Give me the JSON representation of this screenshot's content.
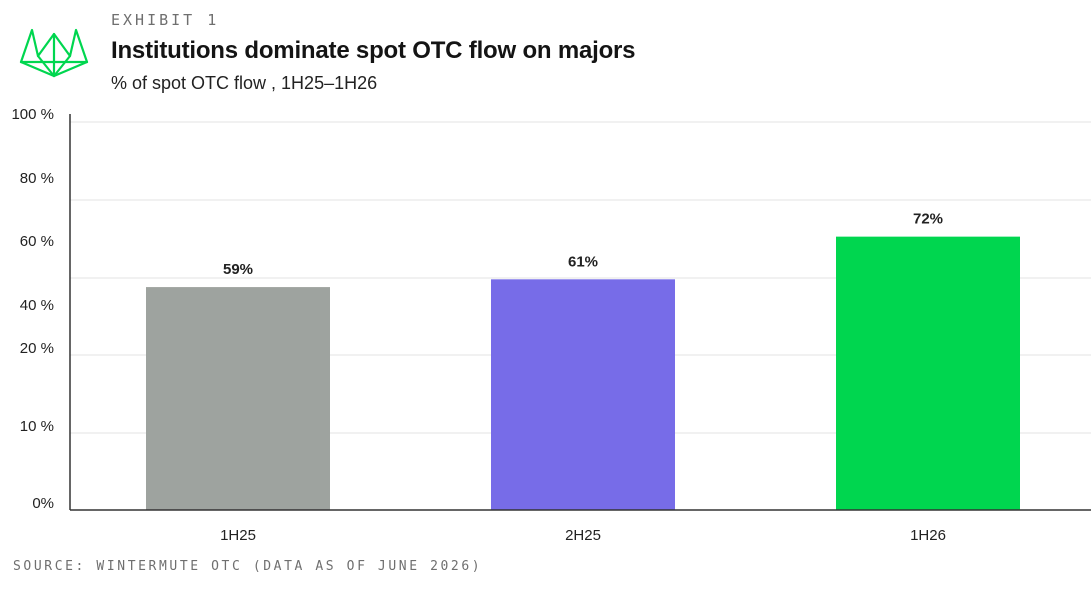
{
  "header": {
    "exhibit": "EXHIBIT 1",
    "title": "Institutions dominate spot OTC flow on majors",
    "subtitle": "% of spot OTC flow , 1H25–1H26"
  },
  "logo": {
    "icon": "wintermute-logo-icon",
    "color": "#00d64f"
  },
  "footer": {
    "source": "SOURCE: WINTERMUTE OTC (DATA AS OF JUNE 2026)"
  },
  "chart_data": {
    "type": "bar",
    "title": "Institutions dominate spot OTC flow on majors",
    "subtitle": "% of spot OTC flow , 1H25–1H26",
    "categories": [
      "1H25",
      "2H25",
      "1H26"
    ],
    "values": [
      59,
      61,
      72
    ],
    "data_labels": [
      "59%",
      "61%",
      "72%"
    ],
    "bar_colors": [
      "#9ea39f",
      "#776ce8",
      "#00d64f"
    ],
    "y_ticks": [
      0,
      10,
      20,
      40,
      60,
      80,
      100
    ],
    "y_tick_labels": [
      "0%",
      "10 %",
      "20 %",
      "40 %",
      "60 %",
      "80 %",
      "100 %"
    ],
    "ylim": [
      0,
      100
    ],
    "grid": true,
    "legend": "none"
  }
}
